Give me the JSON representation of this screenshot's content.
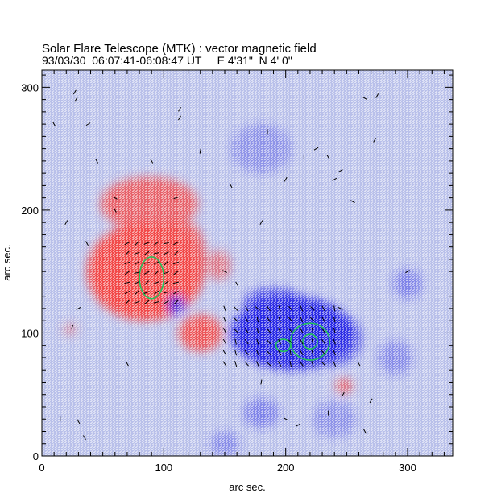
{
  "chart_data": {
    "type": "heatmap",
    "title": "Solar Flare Telescope (MTK) : vector magnetic field",
    "subtitle": "93/03/30  06:07:41-06:08:47 UT     E 4'31\"  N 4' 0\"",
    "xlabel": "arc sec.",
    "ylabel": "arc sec.",
    "xlim": [
      0,
      337
    ],
    "ylim": [
      0,
      314
    ],
    "x_ticks": [
      0,
      100,
      200,
      300
    ],
    "y_ticks": [
      0,
      100,
      200,
      300
    ],
    "colors": {
      "positive_polarity": "#f24a4a",
      "negative_polarity": "#2a2ae6",
      "background": "#b9c0ea",
      "contour": "#22c35a",
      "vector": "#000000"
    },
    "positive_regions": [
      {
        "cx": 85,
        "cy": 150,
        "rx": 48,
        "ry": 40,
        "strength": 1.0
      },
      {
        "cx": 88,
        "cy": 205,
        "rx": 40,
        "ry": 22,
        "strength": 0.8
      },
      {
        "cx": 130,
        "cy": 100,
        "rx": 18,
        "ry": 15,
        "strength": 0.9
      },
      {
        "cx": 110,
        "cy": 165,
        "rx": 25,
        "ry": 25,
        "strength": 0.7
      },
      {
        "cx": 145,
        "cy": 155,
        "rx": 10,
        "ry": 12,
        "strength": 0.6
      },
      {
        "cx": 248,
        "cy": 57,
        "rx": 7,
        "ry": 6,
        "strength": 0.8
      },
      {
        "cx": 23,
        "cy": 103,
        "rx": 5,
        "ry": 4,
        "strength": 0.6
      },
      {
        "cx": 115,
        "cy": 180,
        "rx": 15,
        "ry": 12,
        "strength": 0.6
      }
    ],
    "negative_regions": [
      {
        "cx": 205,
        "cy": 100,
        "rx": 50,
        "ry": 30,
        "strength": 1.0
      },
      {
        "cx": 190,
        "cy": 125,
        "rx": 25,
        "ry": 12,
        "strength": 0.7
      },
      {
        "cx": 110,
        "cy": 123,
        "rx": 7,
        "ry": 8,
        "strength": 0.9
      },
      {
        "cx": 238,
        "cy": 95,
        "rx": 25,
        "ry": 22,
        "strength": 0.6
      },
      {
        "cx": 300,
        "cy": 140,
        "rx": 12,
        "ry": 12,
        "strength": 0.4
      },
      {
        "cx": 290,
        "cy": 80,
        "rx": 14,
        "ry": 14,
        "strength": 0.35
      },
      {
        "cx": 180,
        "cy": 35,
        "rx": 15,
        "ry": 12,
        "strength": 0.4
      },
      {
        "cx": 240,
        "cy": 30,
        "rx": 18,
        "ry": 15,
        "strength": 0.3
      },
      {
        "cx": 180,
        "cy": 250,
        "rx": 25,
        "ry": 20,
        "strength": 0.3
      },
      {
        "cx": 150,
        "cy": 10,
        "rx": 12,
        "ry": 10,
        "strength": 0.35
      }
    ],
    "contours": [
      {
        "cx": 90,
        "cy": 145,
        "rx": 10,
        "ry": 17
      },
      {
        "cx": 220,
        "cy": 93,
        "rx": 16,
        "ry": 15
      },
      {
        "cx": 220,
        "cy": 93,
        "rx": 6,
        "ry": 6
      },
      {
        "cx": 198,
        "cy": 90,
        "rx": 6,
        "ry": 5
      }
    ],
    "vector_fields": [
      {
        "x0": 70,
        "x1": 110,
        "y0": 125,
        "y1": 180,
        "step": 8,
        "theta0": 210
      },
      {
        "x0": 150,
        "x1": 245,
        "y0": 75,
        "y1": 125,
        "step": 9,
        "theta0": 300
      }
    ],
    "scattered_vectors": [
      [
        27,
        296,
        60
      ],
      [
        28,
        290,
        60
      ],
      [
        37,
        173,
        300
      ],
      [
        30,
        120,
        30
      ],
      [
        25,
        105,
        70
      ],
      [
        38,
        270,
        30
      ],
      [
        45,
        240,
        300
      ],
      [
        60,
        210,
        330
      ],
      [
        90,
        240,
        300
      ],
      [
        110,
        210,
        20
      ],
      [
        113,
        282,
        60
      ],
      [
        113,
        275,
        60
      ],
      [
        130,
        248,
        80
      ],
      [
        155,
        220,
        300
      ],
      [
        180,
        190,
        60
      ],
      [
        185,
        264,
        90
      ],
      [
        200,
        225,
        60
      ],
      [
        215,
        243,
        90
      ],
      [
        225,
        250,
        30
      ],
      [
        235,
        243,
        300
      ],
      [
        240,
        225,
        30
      ],
      [
        245,
        232,
        30
      ],
      [
        255,
        207,
        330
      ],
      [
        273,
        257,
        60
      ],
      [
        265,
        291,
        330
      ],
      [
        275,
        293,
        60
      ],
      [
        245,
        120,
        330
      ],
      [
        260,
        75,
        300
      ],
      [
        300,
        150,
        30
      ],
      [
        180,
        60,
        80
      ],
      [
        200,
        30,
        330
      ],
      [
        210,
        25,
        30
      ],
      [
        247,
        50,
        60
      ],
      [
        265,
        20,
        300
      ],
      [
        270,
        45,
        60
      ],
      [
        30,
        28,
        300
      ],
      [
        35,
        15,
        300
      ],
      [
        15,
        30,
        90
      ],
      [
        10,
        270,
        300
      ],
      [
        20,
        190,
        60
      ],
      [
        60,
        200,
        300
      ],
      [
        70,
        75,
        300
      ],
      [
        150,
        150,
        330
      ],
      [
        160,
        140,
        300
      ],
      [
        235,
        35,
        90
      ]
    ]
  }
}
